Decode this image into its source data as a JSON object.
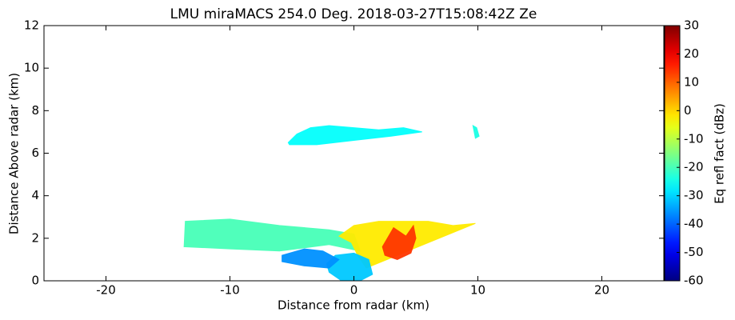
{
  "chart_data": {
    "type": "heatmap",
    "title": "LMU miraMACS 254.0 Deg. 2018-03-27T15:08:42Z  Ze",
    "xlabel": "Distance from radar (km)",
    "ylabel": "Distance Above radar  (km)",
    "colorbar_label": "Eq refl fact (dBz)",
    "colormap": "jet",
    "xlim": [
      -25,
      25
    ],
    "ylim": [
      0,
      12
    ],
    "xticks": [
      -20,
      -10,
      0,
      10,
      20
    ],
    "yticks": [
      0,
      2,
      4,
      6,
      8,
      10,
      12
    ],
    "clim": [
      -60,
      30
    ],
    "cticks": [
      -60,
      -50,
      -40,
      -30,
      -20,
      -10,
      0,
      10,
      20,
      30
    ],
    "regions": [
      {
        "x": [
          -5.3,
          -4.6,
          -3.5,
          -2,
          0,
          2,
          4,
          5.5,
          3,
          0,
          -3,
          -5.2
        ],
        "y": [
          6.5,
          6.9,
          7.2,
          7.3,
          7.2,
          7.1,
          7.2,
          7.0,
          6.8,
          6.6,
          6.4,
          6.4
        ],
        "value": -26
      },
      {
        "x": [
          9.6,
          9.9,
          10.1,
          9.8
        ],
        "y": [
          7.3,
          7.2,
          6.8,
          6.7
        ],
        "value": -24
      },
      {
        "x": [
          -13.7,
          -13.6,
          -10,
          -6,
          -2,
          0,
          0.5,
          -2,
          -6,
          -10,
          -13.6
        ],
        "y": [
          1.6,
          2.8,
          2.9,
          2.6,
          2.4,
          2.2,
          1.4,
          1.7,
          1.4,
          1.5,
          1.6
        ],
        "value": -20
      },
      {
        "x": [
          -1.2,
          0,
          2,
          4,
          6,
          8,
          9.8,
          1.0,
          0.3,
          -0.2
        ],
        "y": [
          2.1,
          2.6,
          2.8,
          2.8,
          2.8,
          2.6,
          2.7,
          0.6,
          1.2,
          1.8
        ],
        "value": -2
      },
      {
        "x": [
          2.3,
          3.2,
          4.2,
          4.8,
          5.0,
          4.6,
          3.5,
          2.5
        ],
        "y": [
          1.6,
          2.5,
          2.1,
          2.6,
          2.0,
          1.3,
          1.0,
          1.2
        ],
        "value": 14
      },
      {
        "x": [
          -2.2,
          -1.5,
          0,
          1.2,
          1.5,
          0.5,
          -1,
          -2
        ],
        "y": [
          0.8,
          1.2,
          1.3,
          1.0,
          0.3,
          0.0,
          0.0,
          0.4
        ],
        "value": -31
      },
      {
        "x": [
          -5.8,
          -4,
          -2.5,
          -1.2,
          -2,
          -4,
          -5.8
        ],
        "y": [
          1.2,
          1.5,
          1.4,
          1.0,
          0.6,
          0.7,
          0.9
        ],
        "value": -36
      }
    ]
  }
}
